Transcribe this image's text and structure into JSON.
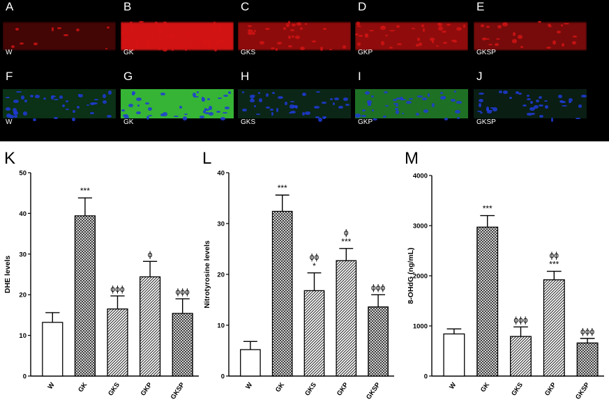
{
  "micrographs": {
    "row1": [
      {
        "letter": "A",
        "group": "W"
      },
      {
        "letter": "B",
        "group": "GK"
      },
      {
        "letter": "C",
        "group": "GKS"
      },
      {
        "letter": "D",
        "group": "GKP"
      },
      {
        "letter": "E",
        "group": "GKSP"
      }
    ],
    "row2": [
      {
        "letter": "F",
        "group": "W"
      },
      {
        "letter": "G",
        "group": "GK"
      },
      {
        "letter": "H",
        "group": "GKS"
      },
      {
        "letter": "I",
        "group": "GKP"
      },
      {
        "letter": "J",
        "group": "GKSP"
      }
    ],
    "colors": {
      "red_stain": "#d41414",
      "green_stain": "#2ecc2e",
      "blue_stain": "#1f3bd6"
    }
  },
  "chart_data": [
    {
      "panel": "K",
      "type": "bar",
      "categories": [
        "W",
        "GK",
        "GKS",
        "GKP",
        "GKSP"
      ],
      "values": [
        13.2,
        39.4,
        16.5,
        24.4,
        15.4
      ],
      "errors": [
        2.4,
        4.4,
        3.2,
        3.8,
        3.6
      ],
      "annotations": [
        "",
        "***",
        "ϕϕϕ",
        "ϕ",
        "ϕϕϕ"
      ],
      "ylabel": "DHE levels",
      "ylim": [
        0,
        50
      ],
      "yticks": [
        0,
        10,
        20,
        30,
        40,
        50
      ],
      "fills": [
        "white",
        "crosshatch",
        "diag",
        "diag",
        "crosshatch"
      ]
    },
    {
      "panel": "L",
      "type": "bar",
      "categories": [
        "W",
        "GK",
        "GKS",
        "GKP",
        "GKSP"
      ],
      "values": [
        5.2,
        32.4,
        16.8,
        22.7,
        13.6
      ],
      "errors": [
        1.6,
        3.2,
        3.5,
        2.4,
        2.4
      ],
      "annotations": [
        "",
        "***",
        "ϕϕ\n*",
        "ϕ\n***",
        "ϕϕϕ"
      ],
      "ylabel": "Nitrotyrosine levels",
      "ylim": [
        0,
        40
      ],
      "yticks": [
        0,
        10,
        20,
        30,
        40
      ],
      "fills": [
        "white",
        "crosshatch",
        "diag",
        "diag",
        "crosshatch"
      ]
    },
    {
      "panel": "M",
      "type": "bar",
      "categories": [
        "W",
        "GK",
        "GKS",
        "GKP",
        "GKSP"
      ],
      "values": [
        840,
        2970,
        790,
        1920,
        660
      ],
      "errors": [
        100,
        230,
        190,
        170,
        90
      ],
      "annotations": [
        "",
        "***",
        "ϕϕϕ",
        "ϕϕ\n***",
        "ϕϕϕ"
      ],
      "ylabel": "8-OHdG (ng/mL)",
      "ylim": [
        0,
        4000
      ],
      "yticks": [
        0,
        1000,
        2000,
        3000,
        4000
      ],
      "fills": [
        "white",
        "crosshatch",
        "diag",
        "diag",
        "crosshatch"
      ]
    }
  ]
}
